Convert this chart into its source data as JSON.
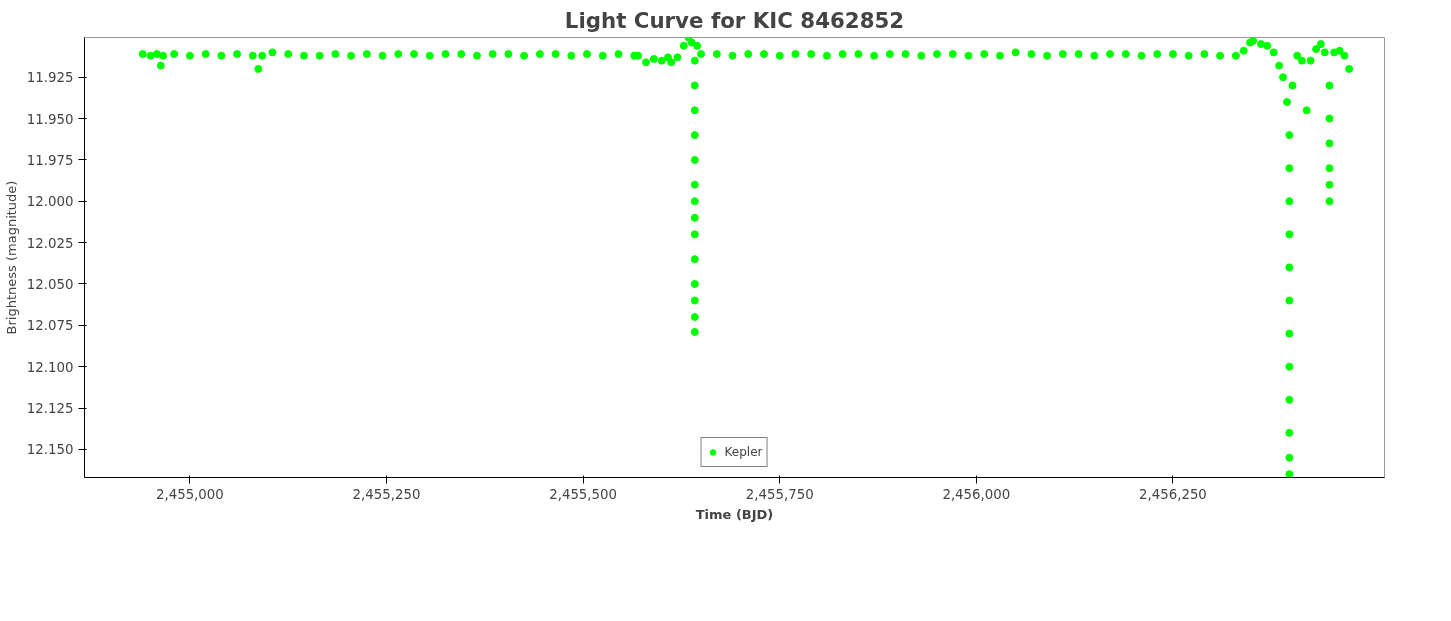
{
  "chart_data": {
    "type": "scatter",
    "title": "Light Curve for KIC 8462852",
    "xlabel": "Time (BJD)",
    "ylabel": "Brightness (magnitude)",
    "xlim": [
      2454866,
      2456519
    ],
    "ylim": [
      12.167,
      11.901
    ],
    "xticks": [
      {
        "value": 2455000,
        "label": "2,455,000"
      },
      {
        "value": 2455250,
        "label": "2,455,250"
      },
      {
        "value": 2455500,
        "label": "2,455,500"
      },
      {
        "value": 2455750,
        "label": "2,455,750"
      },
      {
        "value": 2456000,
        "label": "2,456,000"
      },
      {
        "value": 2456250,
        "label": "2,456,250"
      }
    ],
    "yticks": [
      {
        "value": 11.925,
        "label": "11.925"
      },
      {
        "value": 11.95,
        "label": "11.950"
      },
      {
        "value": 11.975,
        "label": "11.975"
      },
      {
        "value": 12.0,
        "label": "12.000"
      },
      {
        "value": 12.025,
        "label": "12.025"
      },
      {
        "value": 12.05,
        "label": "12.050"
      },
      {
        "value": 12.075,
        "label": "12.075"
      },
      {
        "value": 12.1,
        "label": "12.100"
      },
      {
        "value": 12.125,
        "label": "12.125"
      },
      {
        "value": 12.15,
        "label": "12.150"
      }
    ],
    "grid": false,
    "legend": "bottom",
    "marker": "circle",
    "series": [
      {
        "name": "Kepler",
        "color": "#00ff00",
        "x": [
          2454940,
          2454950,
          2454958,
          2454963,
          2454966,
          2454980,
          2455000,
          2455020,
          2455040,
          2455060,
          2455080,
          2455087,
          2455092,
          2455105,
          2455125,
          2455145,
          2455165,
          2455185,
          2455205,
          2455225,
          2455245,
          2455265,
          2455285,
          2455305,
          2455325,
          2455345,
          2455365,
          2455385,
          2455405,
          2455425,
          2455445,
          2455465,
          2455485,
          2455505,
          2455525,
          2455545,
          2455565,
          2455570,
          2455580,
          2455590,
          2455600,
          2455608,
          2455612,
          2455620,
          2455628,
          2455634,
          2455638,
          2455642,
          2455642,
          2455642,
          2455642,
          2455642,
          2455642,
          2455642,
          2455642,
          2455642,
          2455642,
          2455642,
          2455642,
          2455642,
          2455642,
          2455645,
          2455650,
          2455670,
          2455690,
          2455710,
          2455730,
          2455750,
          2455770,
          2455790,
          2455810,
          2455830,
          2455850,
          2455870,
          2455890,
          2455910,
          2455930,
          2455950,
          2455970,
          2455990,
          2456010,
          2456030,
          2456050,
          2456070,
          2456090,
          2456110,
          2456130,
          2456150,
          2456170,
          2456190,
          2456210,
          2456230,
          2456250,
          2456270,
          2456290,
          2456310,
          2456330,
          2456340,
          2456348,
          2456352,
          2456362,
          2456370,
          2456378,
          2456385,
          2456390,
          2456395,
          2456398,
          2456398,
          2456398,
          2456398,
          2456398,
          2456398,
          2456398,
          2456398,
          2456398,
          2456398,
          2456398,
          2456398,
          2456402,
          2456408,
          2456414,
          2456420,
          2456425,
          2456432,
          2456438,
          2456443,
          2456449,
          2456449,
          2456449,
          2456449,
          2456449,
          2456449,
          2456455,
          2456462,
          2456468,
          2456474
        ],
        "values": [
          11.911,
          11.912,
          11.911,
          11.918,
          11.912,
          11.911,
          11.912,
          11.911,
          11.912,
          11.911,
          11.912,
          11.92,
          11.912,
          11.91,
          11.911,
          11.912,
          11.912,
          11.911,
          11.912,
          11.911,
          11.912,
          11.911,
          11.911,
          11.912,
          11.911,
          11.911,
          11.912,
          11.911,
          11.911,
          11.912,
          11.911,
          11.911,
          11.912,
          11.911,
          11.912,
          11.911,
          11.912,
          11.912,
          11.916,
          11.914,
          11.915,
          11.913,
          11.916,
          11.913,
          11.906,
          11.901,
          11.904,
          11.915,
          11.93,
          11.945,
          11.96,
          11.975,
          11.99,
          12.0,
          12.01,
          12.02,
          12.035,
          12.05,
          12.06,
          12.07,
          12.079,
          11.906,
          11.911,
          11.911,
          11.912,
          11.911,
          11.911,
          11.912,
          11.911,
          11.911,
          11.912,
          11.911,
          11.911,
          11.912,
          11.911,
          11.911,
          11.912,
          11.911,
          11.911,
          11.912,
          11.911,
          11.912,
          11.91,
          11.911,
          11.912,
          11.911,
          11.911,
          11.912,
          11.911,
          11.911,
          11.912,
          11.911,
          11.911,
          11.912,
          11.911,
          11.912,
          11.912,
          11.909,
          11.904,
          11.903,
          11.905,
          11.906,
          11.91,
          11.918,
          11.925,
          11.94,
          11.96,
          11.98,
          12.0,
          12.02,
          12.04,
          12.06,
          12.08,
          12.1,
          12.12,
          12.14,
          12.155,
          12.165,
          11.93,
          11.912,
          11.915,
          11.945,
          11.915,
          11.908,
          11.905,
          11.91,
          11.93,
          11.95,
          11.965,
          11.98,
          11.99,
          12.0,
          11.91,
          11.909,
          11.912,
          11.92
        ]
      }
    ]
  }
}
